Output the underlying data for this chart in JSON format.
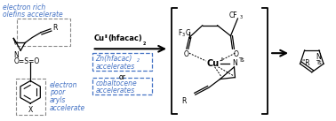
{
  "background_color": "#ffffff",
  "blue": "#4472c4",
  "black": "#000000",
  "figsize": [
    3.78,
    1.37
  ],
  "dpi": 100,
  "texts": {
    "elec_rich_1": "electron rich",
    "elec_rich_2": "olefins accelerate",
    "elec_poor_1": "electron",
    "elec_poor_2": "poor",
    "elec_poor_3": "aryls",
    "elec_poor_4": "accelerate",
    "cu_reagent": "Cu",
    "cu_super": "II",
    "cu_rest": "(hfacac)",
    "cu_sub": "2",
    "zn_line1": "Zn(hfacac)",
    "zn_sub": "2",
    "zn_line2": "accelerates",
    "or": "or",
    "cob_line1": "cobaltocene",
    "cob_line2": "accelerates",
    "cf3_top": "CF",
    "cf3_sub": "3",
    "f3c": "F",
    "f3c_sub": "3",
    "f3c_rest": "C",
    "o_left": "O",
    "o_right": "O",
    "cu_complex": "Cu",
    "cu_complex_super": "I",
    "n_complex": "N",
    "ts_complex": "Ts",
    "r_complex": "R",
    "n_product": "N",
    "r_product": "''R",
    "ts_product": "Ts",
    "n_substrate": "N",
    "o_s_o": "O=S=O",
    "r_substrate": "R",
    "x_substrate": "X"
  }
}
